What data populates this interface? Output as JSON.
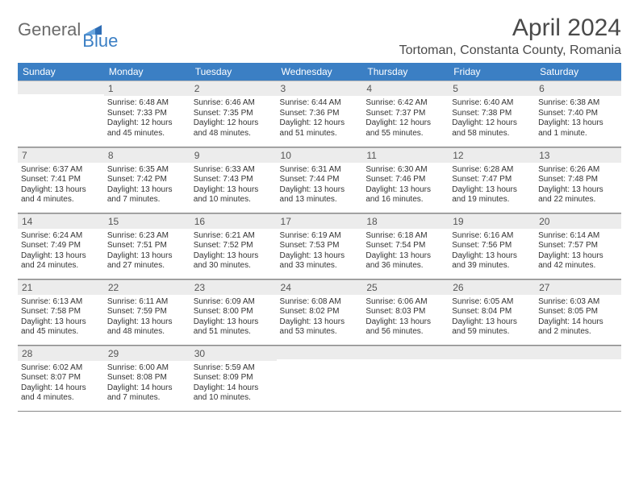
{
  "brand": {
    "part1": "General",
    "part2": "Blue"
  },
  "header": {
    "month_title": "April 2024",
    "location": "Tortoman, Constanta County, Romania"
  },
  "colors": {
    "accent": "#3b7fc4",
    "header_text": "#ffffff",
    "daynum_bg": "#ececec",
    "border": "#888888",
    "body_bg": "#ffffff"
  },
  "typography": {
    "title_fontsize": 30,
    "location_fontsize": 16,
    "dayhdr_fontsize": 12,
    "body_fontsize": 10
  },
  "layout": {
    "columns": 7,
    "rows": 5,
    "aspect_w": 792,
    "aspect_h": 612
  },
  "day_headers": [
    "Sunday",
    "Monday",
    "Tuesday",
    "Wednesday",
    "Thursday",
    "Friday",
    "Saturday"
  ],
  "weeks": [
    [
      null,
      {
        "n": "1",
        "sunrise": "Sunrise: 6:48 AM",
        "sunset": "Sunset: 7:33 PM",
        "daylight": "Daylight: 12 hours and 45 minutes."
      },
      {
        "n": "2",
        "sunrise": "Sunrise: 6:46 AM",
        "sunset": "Sunset: 7:35 PM",
        "daylight": "Daylight: 12 hours and 48 minutes."
      },
      {
        "n": "3",
        "sunrise": "Sunrise: 6:44 AM",
        "sunset": "Sunset: 7:36 PM",
        "daylight": "Daylight: 12 hours and 51 minutes."
      },
      {
        "n": "4",
        "sunrise": "Sunrise: 6:42 AM",
        "sunset": "Sunset: 7:37 PM",
        "daylight": "Daylight: 12 hours and 55 minutes."
      },
      {
        "n": "5",
        "sunrise": "Sunrise: 6:40 AM",
        "sunset": "Sunset: 7:38 PM",
        "daylight": "Daylight: 12 hours and 58 minutes."
      },
      {
        "n": "6",
        "sunrise": "Sunrise: 6:38 AM",
        "sunset": "Sunset: 7:40 PM",
        "daylight": "Daylight: 13 hours and 1 minute."
      }
    ],
    [
      {
        "n": "7",
        "sunrise": "Sunrise: 6:37 AM",
        "sunset": "Sunset: 7:41 PM",
        "daylight": "Daylight: 13 hours and 4 minutes."
      },
      {
        "n": "8",
        "sunrise": "Sunrise: 6:35 AM",
        "sunset": "Sunset: 7:42 PM",
        "daylight": "Daylight: 13 hours and 7 minutes."
      },
      {
        "n": "9",
        "sunrise": "Sunrise: 6:33 AM",
        "sunset": "Sunset: 7:43 PM",
        "daylight": "Daylight: 13 hours and 10 minutes."
      },
      {
        "n": "10",
        "sunrise": "Sunrise: 6:31 AM",
        "sunset": "Sunset: 7:44 PM",
        "daylight": "Daylight: 13 hours and 13 minutes."
      },
      {
        "n": "11",
        "sunrise": "Sunrise: 6:30 AM",
        "sunset": "Sunset: 7:46 PM",
        "daylight": "Daylight: 13 hours and 16 minutes."
      },
      {
        "n": "12",
        "sunrise": "Sunrise: 6:28 AM",
        "sunset": "Sunset: 7:47 PM",
        "daylight": "Daylight: 13 hours and 19 minutes."
      },
      {
        "n": "13",
        "sunrise": "Sunrise: 6:26 AM",
        "sunset": "Sunset: 7:48 PM",
        "daylight": "Daylight: 13 hours and 22 minutes."
      }
    ],
    [
      {
        "n": "14",
        "sunrise": "Sunrise: 6:24 AM",
        "sunset": "Sunset: 7:49 PM",
        "daylight": "Daylight: 13 hours and 24 minutes."
      },
      {
        "n": "15",
        "sunrise": "Sunrise: 6:23 AM",
        "sunset": "Sunset: 7:51 PM",
        "daylight": "Daylight: 13 hours and 27 minutes."
      },
      {
        "n": "16",
        "sunrise": "Sunrise: 6:21 AM",
        "sunset": "Sunset: 7:52 PM",
        "daylight": "Daylight: 13 hours and 30 minutes."
      },
      {
        "n": "17",
        "sunrise": "Sunrise: 6:19 AM",
        "sunset": "Sunset: 7:53 PM",
        "daylight": "Daylight: 13 hours and 33 minutes."
      },
      {
        "n": "18",
        "sunrise": "Sunrise: 6:18 AM",
        "sunset": "Sunset: 7:54 PM",
        "daylight": "Daylight: 13 hours and 36 minutes."
      },
      {
        "n": "19",
        "sunrise": "Sunrise: 6:16 AM",
        "sunset": "Sunset: 7:56 PM",
        "daylight": "Daylight: 13 hours and 39 minutes."
      },
      {
        "n": "20",
        "sunrise": "Sunrise: 6:14 AM",
        "sunset": "Sunset: 7:57 PM",
        "daylight": "Daylight: 13 hours and 42 minutes."
      }
    ],
    [
      {
        "n": "21",
        "sunrise": "Sunrise: 6:13 AM",
        "sunset": "Sunset: 7:58 PM",
        "daylight": "Daylight: 13 hours and 45 minutes."
      },
      {
        "n": "22",
        "sunrise": "Sunrise: 6:11 AM",
        "sunset": "Sunset: 7:59 PM",
        "daylight": "Daylight: 13 hours and 48 minutes."
      },
      {
        "n": "23",
        "sunrise": "Sunrise: 6:09 AM",
        "sunset": "Sunset: 8:00 PM",
        "daylight": "Daylight: 13 hours and 51 minutes."
      },
      {
        "n": "24",
        "sunrise": "Sunrise: 6:08 AM",
        "sunset": "Sunset: 8:02 PM",
        "daylight": "Daylight: 13 hours and 53 minutes."
      },
      {
        "n": "25",
        "sunrise": "Sunrise: 6:06 AM",
        "sunset": "Sunset: 8:03 PM",
        "daylight": "Daylight: 13 hours and 56 minutes."
      },
      {
        "n": "26",
        "sunrise": "Sunrise: 6:05 AM",
        "sunset": "Sunset: 8:04 PM",
        "daylight": "Daylight: 13 hours and 59 minutes."
      },
      {
        "n": "27",
        "sunrise": "Sunrise: 6:03 AM",
        "sunset": "Sunset: 8:05 PM",
        "daylight": "Daylight: 14 hours and 2 minutes."
      }
    ],
    [
      {
        "n": "28",
        "sunrise": "Sunrise: 6:02 AM",
        "sunset": "Sunset: 8:07 PM",
        "daylight": "Daylight: 14 hours and 4 minutes."
      },
      {
        "n": "29",
        "sunrise": "Sunrise: 6:00 AM",
        "sunset": "Sunset: 8:08 PM",
        "daylight": "Daylight: 14 hours and 7 minutes."
      },
      {
        "n": "30",
        "sunrise": "Sunrise: 5:59 AM",
        "sunset": "Sunset: 8:09 PM",
        "daylight": "Daylight: 14 hours and 10 minutes."
      },
      null,
      null,
      null,
      null
    ]
  ]
}
